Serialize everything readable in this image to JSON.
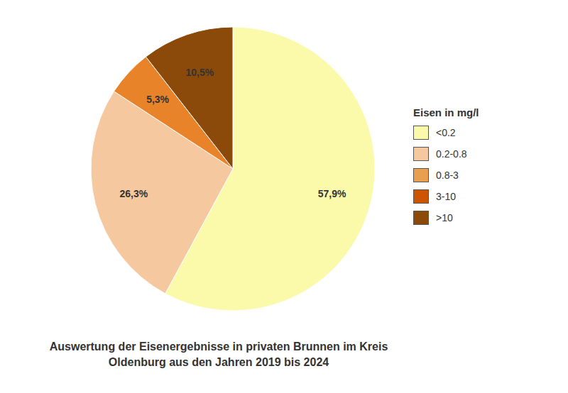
{
  "chart_data": {
    "type": "pie",
    "title": "Auswertung der Eisenergebnisse in privaten Brunnen im Kreis\nOldenburg aus den Jahren 2019 bis 2024",
    "values": [
      57.9,
      26.3,
      5.3,
      10.5
    ],
    "value_labels": [
      "57,9%",
      "26,3%",
      "5,3%",
      "10,5%"
    ],
    "colors": [
      "#FAFAAA",
      "#F5C8A0",
      "#E8832A",
      "#8B4A0A"
    ],
    "data_labels": true,
    "legend": "right",
    "legend_title": "Eisen in mg/l",
    "legend_entries": [
      {
        "name": "<0.2",
        "color": "#FAFAAA"
      },
      {
        "name": "0.2-0.8",
        "color": "#F5C8A0"
      },
      {
        "name": "0.8-3",
        "color": "#E8A050"
      },
      {
        "name": "3-10",
        "color": "#CC5500"
      },
      {
        "name": ">10",
        "color": "#8B4A0A"
      }
    ]
  }
}
